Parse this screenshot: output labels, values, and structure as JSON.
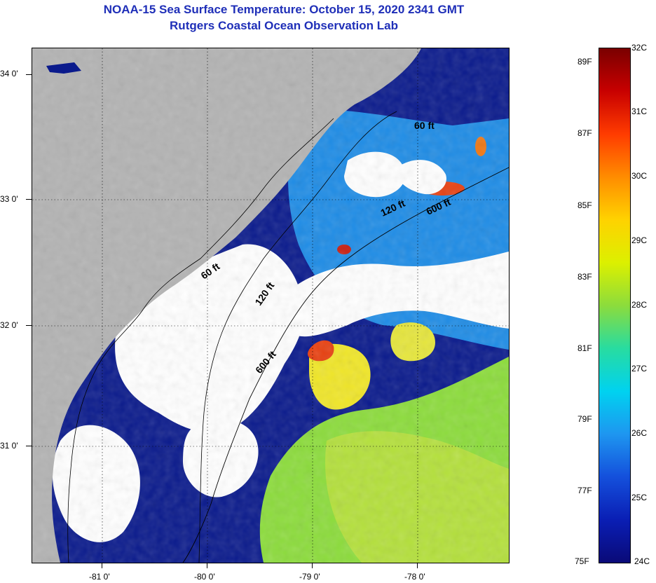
{
  "header": {
    "title": "NOAA-15 Sea Surface Temperature:  October 15, 2020 2341 GMT",
    "subtitle": "Rutgers Coastal Ocean Observation Lab"
  },
  "map": {
    "lat_labels": [
      "34 0'",
      "33 0'",
      "32 0'",
      "31 0'"
    ],
    "lon_labels": [
      "-81 0'",
      "-80 0'",
      "-79 0'",
      "-78 0'"
    ],
    "contour_labels": [
      "60 ft",
      "120 ft",
      "600 ft",
      "60 ft",
      "120 ft",
      "600 ft"
    ],
    "colors": {
      "land": "#b3b3b3",
      "cloud": "#ffffff",
      "cold_water": "#0a1a8c",
      "mid_water": "#1e8ce6",
      "warm_water": "#8cdc3c",
      "hot_water": "#f0e628",
      "hottest_water": "#e84010"
    }
  },
  "colorbar": {
    "fahrenheit": [
      "89F",
      "87F",
      "85F",
      "83F",
      "81F",
      "79F",
      "77F",
      "75F"
    ],
    "celsius": [
      "32C",
      "31C",
      "30C",
      "29C",
      "28C",
      "27C",
      "26C",
      "25C",
      "24C"
    ],
    "colors": [
      "#7a0000",
      "#c80000",
      "#ff3c00",
      "#ff8c00",
      "#ffd200",
      "#dcf000",
      "#8cdc3c",
      "#28dca0",
      "#00d2f0",
      "#1e96f0",
      "#1450dc",
      "#0a1eb4",
      "#0a0a78"
    ]
  }
}
